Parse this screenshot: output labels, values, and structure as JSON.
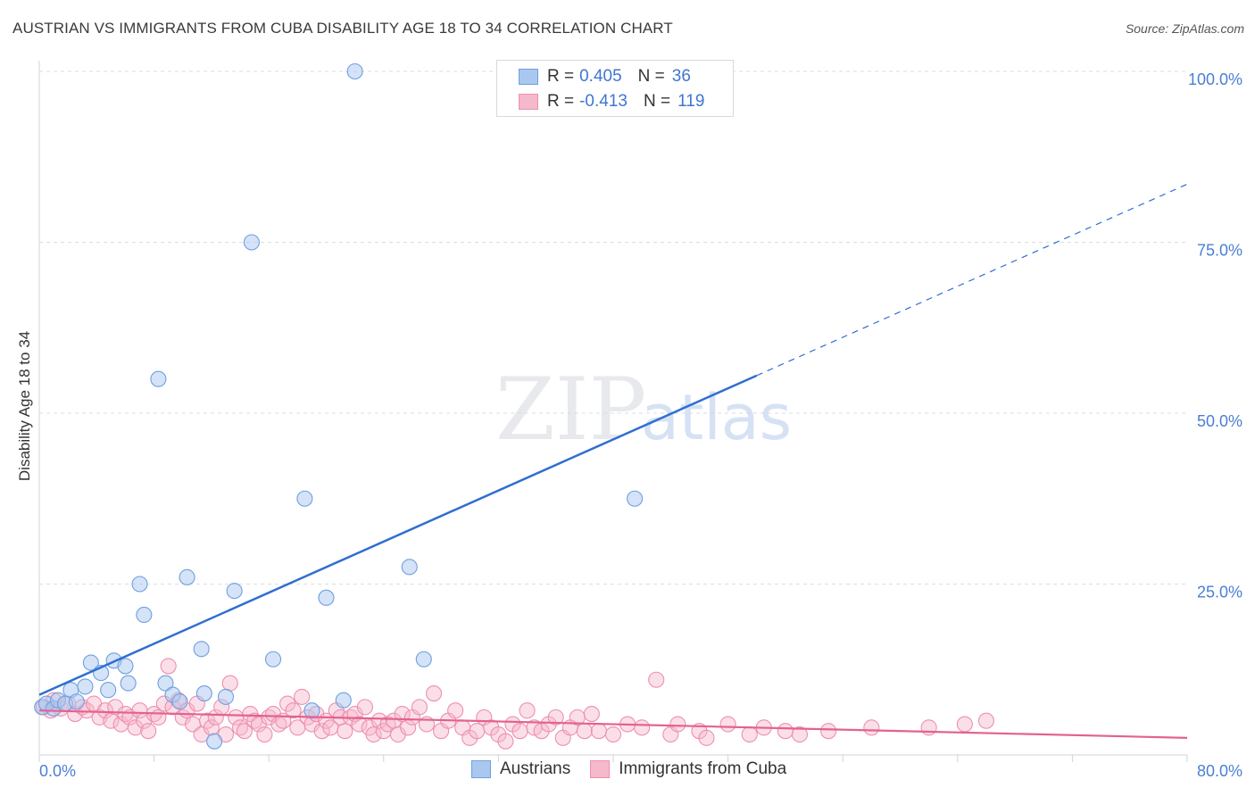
{
  "header": {
    "title": "AUSTRIAN VS IMMIGRANTS FROM CUBA DISABILITY AGE 18 TO 34 CORRELATION CHART",
    "source": "Source: ZipAtlas.com"
  },
  "watermark": {
    "zip": "ZIP",
    "atlas": "atlas"
  },
  "legend": {
    "series": [
      {
        "r_label": "R =",
        "r_value": "0.405",
        "n_label": "N =",
        "n_value": "36"
      },
      {
        "r_label": "R =",
        "r_value": "-0.413",
        "n_label": "N =",
        "n_value": "119"
      }
    ]
  },
  "bottom_legend": {
    "austrians": "Austrians",
    "cuba": "Immigrants from Cuba"
  },
  "colors": {
    "austrians_fill": "#aac8ef",
    "austrians_stroke": "#6f9fe0",
    "austrians_line": "#2f6fd0",
    "cuba_fill": "#f6b8cb",
    "cuba_stroke": "#ee8fae",
    "cuba_line": "#e3628f",
    "tick": "#4a7fd4",
    "grid": "#d9dde3"
  },
  "chart_data": {
    "type": "scatter",
    "title": "AUSTRIAN VS IMMIGRANTS FROM CUBA DISABILITY AGE 18 TO 34 CORRELATION CHART",
    "xlabel": "",
    "ylabel": "Disability Age 18 to 34",
    "xlim": [
      0,
      80
    ],
    "ylim": [
      0,
      100
    ],
    "x_tick_labels": [
      "0.0%",
      "80.0%"
    ],
    "y_ticks": [
      25,
      50,
      75,
      100
    ],
    "y_tick_labels": [
      "25.0%",
      "50.0%",
      "75.0%",
      "100.0%"
    ],
    "series": [
      {
        "name": "Austrians",
        "R": 0.405,
        "N": 36,
        "points": [
          [
            0.2,
            7.0
          ],
          [
            0.5,
            7.5
          ],
          [
            1.0,
            6.8
          ],
          [
            1.3,
            8.0
          ],
          [
            1.8,
            7.5
          ],
          [
            2.2,
            9.5
          ],
          [
            2.6,
            7.8
          ],
          [
            3.2,
            10.0
          ],
          [
            3.6,
            13.5
          ],
          [
            4.3,
            12.0
          ],
          [
            4.8,
            9.5
          ],
          [
            5.2,
            13.8
          ],
          [
            6.0,
            13.0
          ],
          [
            6.2,
            10.5
          ],
          [
            7.0,
            25.0
          ],
          [
            7.3,
            20.5
          ],
          [
            8.3,
            55.0
          ],
          [
            8.8,
            10.5
          ],
          [
            9.3,
            8.8
          ],
          [
            9.8,
            7.8
          ],
          [
            10.3,
            26.0
          ],
          [
            11.3,
            15.5
          ],
          [
            11.5,
            9.0
          ],
          [
            12.2,
            2.0
          ],
          [
            13.0,
            8.5
          ],
          [
            13.6,
            24.0
          ],
          [
            14.8,
            75.0
          ],
          [
            16.3,
            14.0
          ],
          [
            18.5,
            37.5
          ],
          [
            19.0,
            6.5
          ],
          [
            20.0,
            23.0
          ],
          [
            21.2,
            8.0
          ],
          [
            22.0,
            100.0
          ],
          [
            25.8,
            27.5
          ],
          [
            26.8,
            14.0
          ],
          [
            41.5,
            37.5
          ]
        ],
        "trend": {
          "x": [
            0,
            50
          ],
          "y": [
            8.8,
            55.5
          ],
          "dashed_to": [
            80,
            83.5
          ]
        }
      },
      {
        "name": "Immigrants from Cuba",
        "R": -0.413,
        "N": 119,
        "points": [
          [
            0.3,
            7.0
          ],
          [
            0.8,
            6.5
          ],
          [
            1.0,
            8.0
          ],
          [
            1.5,
            6.8
          ],
          [
            2.0,
            7.5
          ],
          [
            2.5,
            6.0
          ],
          [
            3.0,
            7.0
          ],
          [
            3.3,
            6.5
          ],
          [
            3.8,
            7.5
          ],
          [
            4.2,
            5.5
          ],
          [
            4.6,
            6.5
          ],
          [
            5.0,
            5.0
          ],
          [
            5.3,
            7.0
          ],
          [
            5.7,
            4.5
          ],
          [
            6.0,
            6.0
          ],
          [
            6.3,
            5.5
          ],
          [
            6.7,
            4.0
          ],
          [
            7.0,
            6.5
          ],
          [
            7.3,
            5.0
          ],
          [
            7.6,
            3.5
          ],
          [
            8.0,
            6.0
          ],
          [
            8.3,
            5.5
          ],
          [
            8.7,
            7.5
          ],
          [
            9.0,
            13.0
          ],
          [
            9.3,
            7.0
          ],
          [
            9.7,
            8.0
          ],
          [
            10.0,
            5.5
          ],
          [
            10.3,
            6.5
          ],
          [
            10.7,
            4.5
          ],
          [
            11.0,
            7.5
          ],
          [
            11.3,
            3.0
          ],
          [
            11.7,
            5.0
          ],
          [
            12.0,
            4.0
          ],
          [
            12.3,
            5.5
          ],
          [
            12.7,
            7.0
          ],
          [
            13.0,
            3.0
          ],
          [
            13.3,
            10.5
          ],
          [
            13.7,
            5.5
          ],
          [
            14.0,
            4.0
          ],
          [
            14.3,
            3.5
          ],
          [
            14.7,
            6.0
          ],
          [
            15.0,
            5.0
          ],
          [
            15.3,
            4.5
          ],
          [
            15.7,
            3.0
          ],
          [
            16.0,
            5.5
          ],
          [
            16.3,
            6.0
          ],
          [
            16.7,
            4.5
          ],
          [
            17.0,
            5.0
          ],
          [
            17.3,
            7.5
          ],
          [
            17.7,
            6.5
          ],
          [
            18.0,
            4.0
          ],
          [
            18.3,
            8.5
          ],
          [
            18.7,
            5.5
          ],
          [
            19.0,
            4.5
          ],
          [
            19.3,
            6.0
          ],
          [
            19.7,
            3.5
          ],
          [
            20.0,
            5.0
          ],
          [
            20.3,
            4.0
          ],
          [
            20.7,
            6.5
          ],
          [
            21.0,
            5.5
          ],
          [
            21.3,
            3.5
          ],
          [
            21.7,
            5.5
          ],
          [
            22.0,
            6.0
          ],
          [
            22.3,
            4.5
          ],
          [
            22.7,
            7.0
          ],
          [
            23.0,
            4.0
          ],
          [
            23.3,
            3.0
          ],
          [
            23.7,
            5.0
          ],
          [
            24.0,
            3.5
          ],
          [
            24.3,
            4.5
          ],
          [
            24.7,
            5.0
          ],
          [
            25.0,
            3.0
          ],
          [
            25.3,
            6.0
          ],
          [
            25.7,
            4.0
          ],
          [
            26.0,
            5.5
          ],
          [
            26.5,
            7.0
          ],
          [
            27.0,
            4.5
          ],
          [
            27.5,
            9.0
          ],
          [
            28.0,
            3.5
          ],
          [
            28.5,
            5.0
          ],
          [
            29.0,
            6.5
          ],
          [
            29.5,
            4.0
          ],
          [
            30.0,
            2.5
          ],
          [
            30.5,
            3.5
          ],
          [
            31.0,
            5.5
          ],
          [
            31.5,
            4.0
          ],
          [
            32.0,
            3.0
          ],
          [
            32.5,
            2.0
          ],
          [
            33.0,
            4.5
          ],
          [
            33.5,
            3.5
          ],
          [
            34.0,
            6.5
          ],
          [
            34.5,
            4.0
          ],
          [
            35.0,
            3.5
          ],
          [
            35.5,
            4.5
          ],
          [
            36.0,
            5.5
          ],
          [
            36.5,
            2.5
          ],
          [
            37.0,
            4.0
          ],
          [
            37.5,
            5.5
          ],
          [
            38.0,
            3.5
          ],
          [
            38.5,
            6.0
          ],
          [
            39.0,
            3.5
          ],
          [
            40.0,
            3.0
          ],
          [
            41.0,
            4.5
          ],
          [
            42.0,
            4.0
          ],
          [
            43.0,
            11.0
          ],
          [
            44.0,
            3.0
          ],
          [
            44.5,
            4.5
          ],
          [
            46.0,
            3.5
          ],
          [
            46.5,
            2.5
          ],
          [
            48.0,
            4.5
          ],
          [
            49.5,
            3.0
          ],
          [
            50.5,
            4.0
          ],
          [
            52.0,
            3.5
          ],
          [
            53.0,
            3.0
          ],
          [
            55.0,
            3.5
          ],
          [
            58.0,
            4.0
          ],
          [
            62.0,
            4.0
          ],
          [
            64.5,
            4.5
          ],
          [
            66.0,
            5.0
          ]
        ],
        "trend": {
          "x": [
            0,
            80
          ],
          "y": [
            6.5,
            2.5
          ]
        }
      }
    ]
  }
}
